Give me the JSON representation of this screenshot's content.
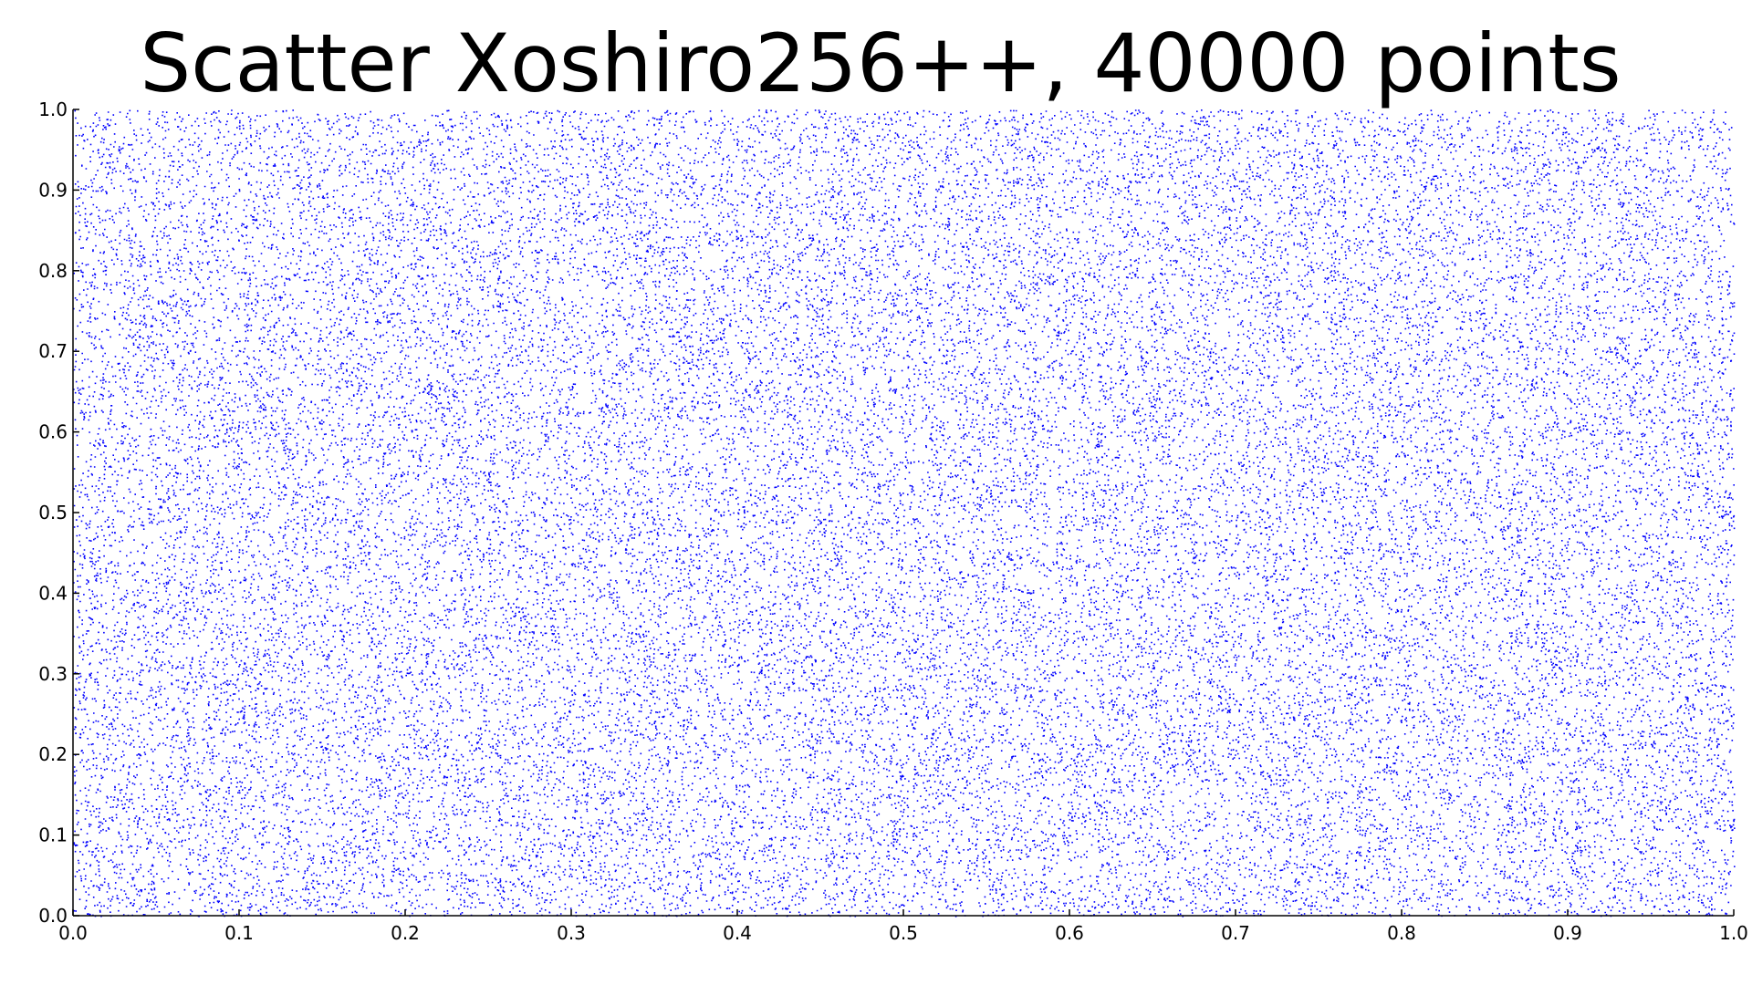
{
  "chart_data": {
    "type": "scatter",
    "title": "Scatter Xoshiro256++, 40000 points",
    "xlabel": "",
    "ylabel": "",
    "xlim": [
      0.0,
      1.0
    ],
    "ylim": [
      0.0,
      1.0
    ],
    "xticks": [
      "0.0",
      "0.1",
      "0.2",
      "0.3",
      "0.4",
      "0.5",
      "0.6",
      "0.7",
      "0.8",
      "0.9",
      "1.0"
    ],
    "yticks": [
      "0.0",
      "0.1",
      "0.2",
      "0.3",
      "0.4",
      "0.5",
      "0.6",
      "0.7",
      "0.8",
      "0.9",
      "1.0"
    ],
    "grid": false,
    "legend": "none",
    "point_count": 40000,
    "distribution": "uniform pseudo-random over [0,1] x [0,1]",
    "marker_color": "#0000ff"
  }
}
